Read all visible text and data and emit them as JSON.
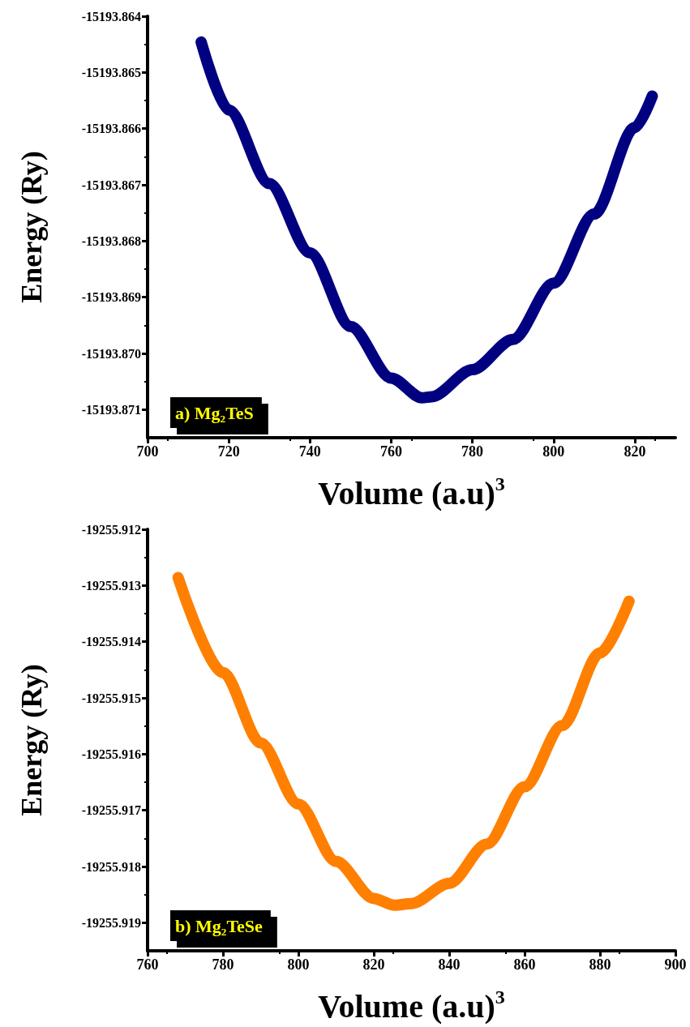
{
  "chart_data": [
    {
      "type": "line",
      "xlabel": "Volume (a.u)$^{3}$",
      "ylabel": "Energy (Ry)",
      "annotations": [
        "a) Mg₂TeS"
      ],
      "xlim": [
        700,
        830
      ],
      "ylim": [
        -15193.8715,
        -15193.864
      ],
      "xticks": [
        700,
        720,
        740,
        760,
        780,
        800,
        820
      ],
      "yticks": [
        -15193.871,
        {
          "value": -15193.87,
          "label": "-15193.870"
        },
        -15193.869,
        -15193.868,
        -15193.867,
        -15193.866,
        -15193.865,
        -15193.864
      ],
      "series": [
        {
          "color": "#000080",
          "x": [
            713.2,
            720,
            730,
            740,
            750,
            760,
            767.6,
            770,
            780,
            790,
            800,
            810,
            820,
            824.3
          ],
          "values": [
            -15193.86446,
            -15193.86567,
            -15193.86698,
            -15193.86821,
            -15193.86952,
            -15193.87044,
            -15193.87079,
            -15193.87077,
            -15193.87029,
            -15193.86975,
            -15193.86875,
            -15193.86752,
            -15193.86598,
            -15193.86542
          ]
        }
      ]
    },
    {
      "type": "line",
      "xlabel": "Volume (a.u)$^{3}$",
      "ylabel": "Energy (Ry)",
      "annotations": [
        "b) Mg₂TeSe"
      ],
      "xlim": [
        760,
        900
      ],
      "ylim": [
        -19255.9195,
        -19255.912
      ],
      "xticks": [
        760,
        780,
        800,
        820,
        840,
        860,
        880,
        900
      ],
      "yticks": [
        -19255.919,
        -19255.918,
        -19255.917,
        -19255.916,
        -19255.915,
        -19255.914,
        -19255.913,
        -19255.912
      ],
      "series": [
        {
          "color": "#ff7f00",
          "x": [
            768.1,
            780,
            790,
            800,
            810,
            820,
            825.5,
            830,
            840,
            850,
            860,
            870,
            880,
            887.7
          ],
          "values": [
            -19255.91286,
            -19255.91455,
            -19255.9158,
            -19255.91689,
            -19255.91791,
            -19255.91857,
            -19255.91869,
            -19255.91866,
            -19255.9183,
            -19255.9176,
            -19255.91658,
            -19255.91549,
            -19255.9142,
            -19255.91328
          ]
        }
      ]
    }
  ]
}
